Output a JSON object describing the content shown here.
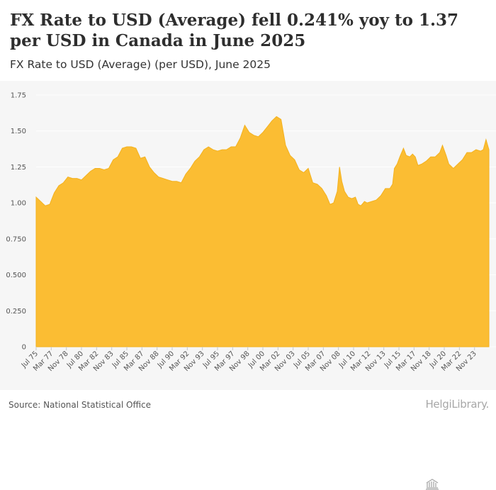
{
  "header": {
    "title": "FX Rate to USD (Average) fell 0.241% yoy to 1.37 per USD in Canada in June 2025",
    "subtitle": "FX Rate to USD (Average) (per USD), June 2025"
  },
  "footer": {
    "source": "Source: National Statistical Office",
    "brand": "HelgiLibrary."
  },
  "colors": {
    "area_fill": "#fbbd33",
    "area_top": "#f3b11f",
    "plot_bg": "#f6f6f6",
    "grid": "#ffffff"
  },
  "chart_data": {
    "type": "area",
    "title": "FX Rate to USD (Average) (per USD), June 2025",
    "xlabel": "",
    "ylabel": "",
    "ylim": [
      0,
      1.75
    ],
    "yticks": [
      0,
      0.25,
      0.5,
      0.75,
      1.0,
      1.25,
      1.5,
      1.75
    ],
    "ytick_labels": [
      "0",
      "0.250",
      "0.500",
      "0.750",
      "1.00",
      "1.25",
      "1.50",
      "1.75"
    ],
    "x_start": 1975.5,
    "x_end": 2025.42,
    "xtick_labels": [
      "Jul 75",
      "Mar 77",
      "Nov 78",
      "Jul 80",
      "Mar 82",
      "Nov 83",
      "Jul 85",
      "Mar 87",
      "Nov 88",
      "Jul 90",
      "Mar 92",
      "Nov 93",
      "Jul 95",
      "Mar 97",
      "Nov 98",
      "Jul 00",
      "Mar 02",
      "Nov 03",
      "Jul 05",
      "Mar 07",
      "Nov 08",
      "Jul 10",
      "Mar 12",
      "Nov 13",
      "Jul 15",
      "Mar 17",
      "Nov 18",
      "Jul 20",
      "Mar 22",
      "Nov 23"
    ],
    "series": [
      {
        "name": "FX Rate to USD (Average)",
        "x": [
          1975.5,
          1976.0,
          1976.5,
          1977.0,
          1977.5,
          1978.0,
          1978.5,
          1979.0,
          1979.5,
          1980.0,
          1980.5,
          1981.0,
          1981.5,
          1982.0,
          1982.5,
          1983.0,
          1983.5,
          1984.0,
          1984.5,
          1985.0,
          1985.5,
          1986.0,
          1986.5,
          1987.0,
          1987.5,
          1988.0,
          1988.5,
          1989.0,
          1989.5,
          1990.0,
          1990.5,
          1991.0,
          1991.5,
          1992.0,
          1992.5,
          1993.0,
          1993.5,
          1994.0,
          1994.5,
          1995.0,
          1995.5,
          1996.0,
          1996.5,
          1997.0,
          1997.5,
          1998.0,
          1998.5,
          1999.0,
          1999.5,
          2000.0,
          2000.5,
          2001.0,
          2001.5,
          2002.0,
          2002.5,
          2003.0,
          2003.5,
          2004.0,
          2004.5,
          2005.0,
          2005.5,
          2006.0,
          2006.5,
          2007.0,
          2007.5,
          2007.9,
          2008.3,
          2008.7,
          2008.95,
          2009.2,
          2009.5,
          2009.9,
          2010.3,
          2010.7,
          2011.0,
          2011.3,
          2011.7,
          2012.0,
          2012.5,
          2013.0,
          2013.5,
          2014.0,
          2014.5,
          2014.8,
          2015.0,
          2015.3,
          2015.6,
          2016.0,
          2016.3,
          2016.7,
          2017.0,
          2017.3,
          2017.6,
          2018.0,
          2018.5,
          2019.0,
          2019.5,
          2020.0,
          2020.3,
          2020.7,
          2021.0,
          2021.5,
          2022.0,
          2022.5,
          2023.0,
          2023.5,
          2024.0,
          2024.5,
          2024.8,
          2025.1,
          2025.42
        ],
        "values": [
          1.04,
          1.01,
          0.98,
          0.99,
          1.07,
          1.12,
          1.14,
          1.18,
          1.17,
          1.17,
          1.16,
          1.19,
          1.22,
          1.24,
          1.24,
          1.23,
          1.24,
          1.3,
          1.32,
          1.38,
          1.39,
          1.39,
          1.38,
          1.31,
          1.32,
          1.25,
          1.21,
          1.18,
          1.17,
          1.16,
          1.15,
          1.15,
          1.14,
          1.2,
          1.24,
          1.29,
          1.32,
          1.37,
          1.39,
          1.37,
          1.36,
          1.37,
          1.37,
          1.39,
          1.39,
          1.45,
          1.54,
          1.49,
          1.47,
          1.46,
          1.49,
          1.53,
          1.57,
          1.6,
          1.58,
          1.4,
          1.33,
          1.3,
          1.23,
          1.21,
          1.24,
          1.14,
          1.13,
          1.1,
          1.05,
          0.99,
          1.0,
          1.08,
          1.25,
          1.15,
          1.08,
          1.04,
          1.03,
          1.04,
          0.99,
          0.98,
          1.01,
          1.0,
          1.01,
          1.02,
          1.05,
          1.1,
          1.1,
          1.13,
          1.24,
          1.27,
          1.32,
          1.38,
          1.33,
          1.32,
          1.34,
          1.32,
          1.26,
          1.27,
          1.29,
          1.32,
          1.32,
          1.35,
          1.4,
          1.33,
          1.27,
          1.24,
          1.27,
          1.3,
          1.35,
          1.35,
          1.37,
          1.36,
          1.37,
          1.44,
          1.37
        ]
      }
    ]
  }
}
